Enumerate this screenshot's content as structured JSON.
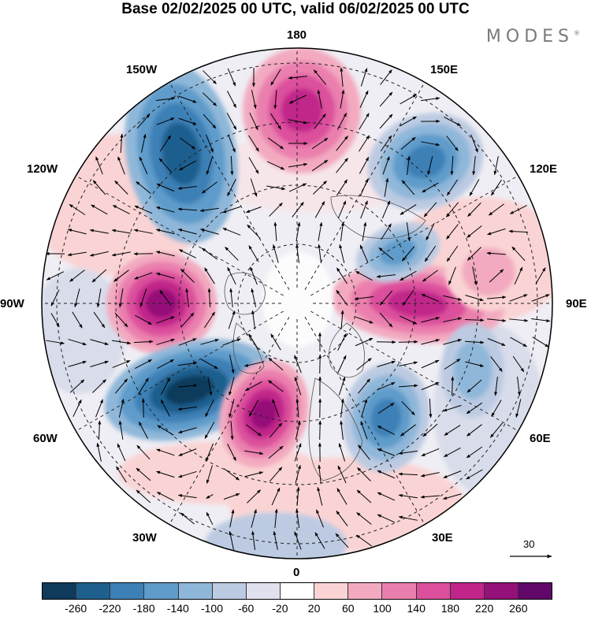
{
  "title": "Base 02/02/2025 00 UTC, valid 06/02/2025 00 UTC",
  "logo": "MODES",
  "logo_mark": "®",
  "longitude_labels": {
    "n180": "180",
    "e150": "150E",
    "e120": "120E",
    "e90": "90E",
    "e60": "60E",
    "e30": "30E",
    "zero": "0",
    "w30": "30W",
    "w60": "60W",
    "w90": "90W",
    "w120": "120W",
    "w150": "150W"
  },
  "reference_vector": "30",
  "colorbar": {
    "ticks": [
      "-260",
      "-220",
      "-180",
      "-140",
      "-100",
      "-60",
      "-20",
      "20",
      "60",
      "100",
      "140",
      "180",
      "220",
      "260"
    ],
    "colors": [
      "#0f3a5c",
      "#1f5f8e",
      "#3d80b6",
      "#5f9ccb",
      "#8fb7d9",
      "#bccbe2",
      "#e1e0ee",
      "#ffffff",
      "#fad4d4",
      "#f3aac0",
      "#ea7fae",
      "#dc4f9c",
      "#c1258a",
      "#951078",
      "#62076a"
    ]
  },
  "anomaly_centers": [
    {
      "sign": "negative",
      "level": 4,
      "colors": [
        "#8fb7d9",
        "#5f9ccb",
        "#3d80b6",
        "#1f5f8e"
      ]
    },
    {
      "sign": "positive",
      "level": 4,
      "colors": [
        "#f3aac0",
        "#ea7fae",
        "#dc4f9c",
        "#c1258a"
      ]
    },
    {
      "sign": "negative",
      "level": 3,
      "colors": [
        "#bccbe2",
        "#8fb7d9",
        "#5f9ccb",
        "#3d80b6"
      ]
    },
    {
      "sign": "positive",
      "level": 5,
      "colors": [
        "#f3aac0",
        "#ea7fae",
        "#dc4f9c",
        "#c1258a",
        "#951078"
      ]
    },
    {
      "sign": "negative",
      "level": 5,
      "colors": [
        "#8fb7d9",
        "#5f9ccb",
        "#3d80b6",
        "#1f5f8e",
        "#0f3a5c"
      ]
    },
    {
      "sign": "positive",
      "level": 5,
      "colors": [
        "#f3aac0",
        "#ea7fae",
        "#dc4f9c",
        "#c1258a",
        "#951078"
      ]
    },
    {
      "sign": "negative",
      "level": 4,
      "colors": [
        "#bccbe2",
        "#8fb7d9",
        "#5f9ccb",
        "#3d80b6"
      ]
    },
    {
      "sign": "positive",
      "level": 4,
      "colors": [
        "#f3aac0",
        "#ea7fae",
        "#dc4f9c",
        "#c1258a"
      ]
    },
    {
      "sign": "negative",
      "level": 3,
      "colors": [
        "#bccbe2",
        "#8fb7d9",
        "#5f9ccb"
      ]
    },
    {
      "sign": "positive",
      "level": 2,
      "colors": [
        "#fad4d4",
        "#f3aac0"
      ]
    },
    {
      "sign": "negative",
      "level": 2,
      "colors": [
        "#bccbe2",
        "#8fb7d9"
      ]
    }
  ]
}
